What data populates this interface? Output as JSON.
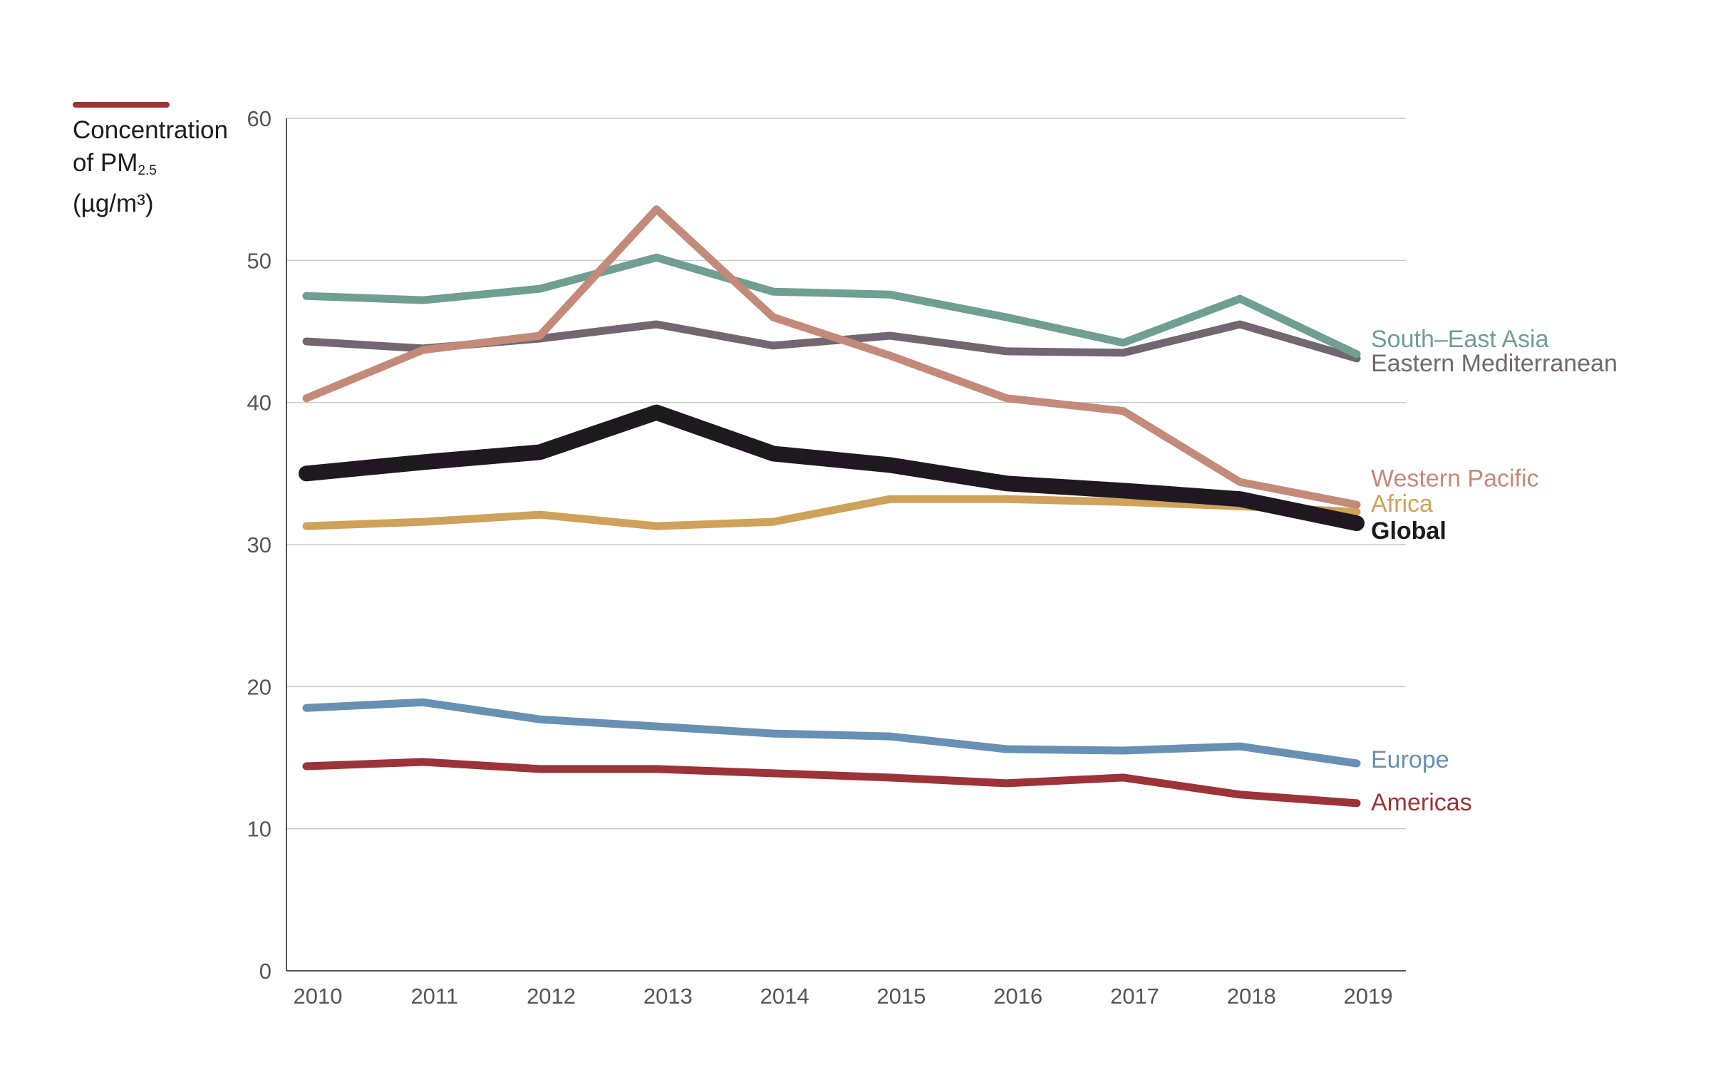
{
  "chart_data": {
    "type": "line",
    "ylabel": {
      "line1": "Concentration",
      "line2_prefix": "of PM",
      "line2_sub": "2.5",
      "line3": "(µg/m³)"
    },
    "ylim": [
      0,
      60
    ],
    "yticks": [
      "0",
      "10",
      "20",
      "30",
      "40",
      "50",
      "60"
    ],
    "ytick_values": [
      0,
      10,
      20,
      30,
      40,
      50,
      60
    ],
    "x": [
      "2010",
      "2011",
      "2012",
      "2013",
      "2014",
      "2015",
      "2016",
      "2017",
      "2018",
      "2019"
    ],
    "grid": true,
    "series": [
      {
        "name": "South–East Asia",
        "color": "#6f9e93",
        "values": [
          47.5,
          47.2,
          48.0,
          50.2,
          47.8,
          47.6,
          46.0,
          44.2,
          47.3,
          43.4
        ],
        "label_y": 44.5
      },
      {
        "name": "Eastern Mediterranean",
        "color": "#726770",
        "values": [
          44.3,
          43.8,
          44.5,
          45.5,
          44.0,
          44.7,
          43.6,
          43.5,
          45.5,
          43.1
        ],
        "label_y": 42.8
      },
      {
        "name": "Western Pacific",
        "color": "#c38a7a",
        "values": [
          40.3,
          43.7,
          44.7,
          53.6,
          46.0,
          43.3,
          40.3,
          39.4,
          34.4,
          32.8
        ],
        "label_y": 34.7
      },
      {
        "name": "Africa",
        "color": "#cea25a",
        "values": [
          31.3,
          31.6,
          32.1,
          31.3,
          31.6,
          33.2,
          33.2,
          33.0,
          32.7,
          32.3
        ],
        "label_y": 32.9
      },
      {
        "name": "Global",
        "color": "#201821",
        "values": [
          35.0,
          35.8,
          36.5,
          39.3,
          36.4,
          35.6,
          34.3,
          33.8,
          33.2,
          31.5
        ],
        "label_y": 31.0
      },
      {
        "name": "Europe",
        "color": "#6890b2",
        "values": [
          18.5,
          18.9,
          17.7,
          17.2,
          16.7,
          16.5,
          15.6,
          15.5,
          15.8,
          14.6
        ],
        "label_y": 14.9
      },
      {
        "name": "Americas",
        "color": "#9b3338",
        "values": [
          14.4,
          14.7,
          14.2,
          14.2,
          13.9,
          13.6,
          13.2,
          13.6,
          12.4,
          11.8
        ],
        "label_y": 11.9
      }
    ]
  }
}
